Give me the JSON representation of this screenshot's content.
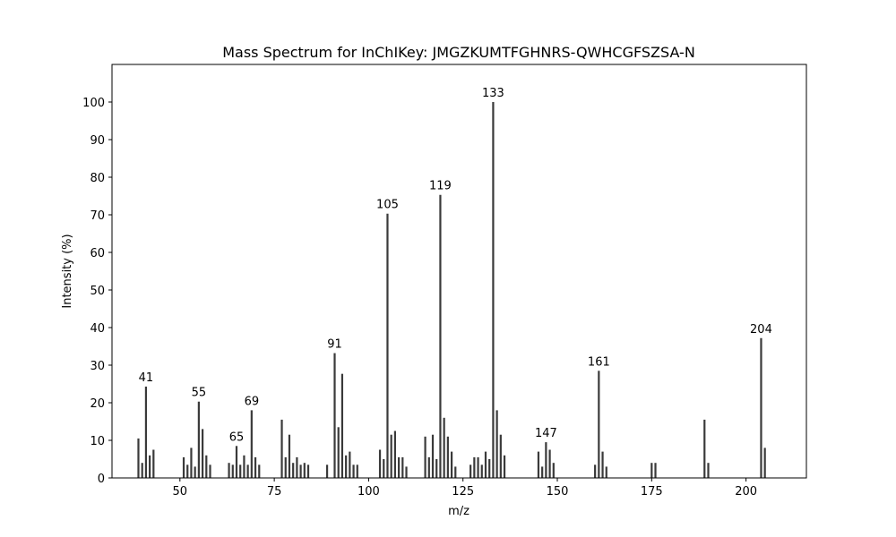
{
  "chart_data": {
    "type": "bar",
    "title": "Mass Spectrum for InChIKey: JMGZKUMTFGHNRS-QWHCGFSZSA-N",
    "xlabel": "m/z",
    "ylabel": "Intensity (%)",
    "xlim": [
      32,
      216
    ],
    "ylim": [
      0,
      110
    ],
    "xticks": [
      50,
      75,
      100,
      125,
      150,
      175,
      200
    ],
    "yticks": [
      0,
      10,
      20,
      30,
      40,
      50,
      60,
      70,
      80,
      90,
      100
    ],
    "grid": false,
    "bar_color": "#3a3a3a",
    "peaks": [
      {
        "mz": 39,
        "intensity": 10.5
      },
      {
        "mz": 40,
        "intensity": 4
      },
      {
        "mz": 41,
        "intensity": 24.3,
        "label": "41"
      },
      {
        "mz": 42,
        "intensity": 6
      },
      {
        "mz": 43,
        "intensity": 7.5
      },
      {
        "mz": 51,
        "intensity": 5.5
      },
      {
        "mz": 52,
        "intensity": 3.5
      },
      {
        "mz": 53,
        "intensity": 8
      },
      {
        "mz": 54,
        "intensity": 3
      },
      {
        "mz": 55,
        "intensity": 20.3,
        "label": "55"
      },
      {
        "mz": 56,
        "intensity": 13
      },
      {
        "mz": 57,
        "intensity": 6
      },
      {
        "mz": 58,
        "intensity": 3.5
      },
      {
        "mz": 63,
        "intensity": 4
      },
      {
        "mz": 64,
        "intensity": 3.5
      },
      {
        "mz": 65,
        "intensity": 8.5,
        "label": "65"
      },
      {
        "mz": 66,
        "intensity": 3.5
      },
      {
        "mz": 67,
        "intensity": 6
      },
      {
        "mz": 68,
        "intensity": 3.5
      },
      {
        "mz": 69,
        "intensity": 18,
        "label": "69"
      },
      {
        "mz": 70,
        "intensity": 5.5
      },
      {
        "mz": 71,
        "intensity": 3.5
      },
      {
        "mz": 77,
        "intensity": 15.5
      },
      {
        "mz": 78,
        "intensity": 5.5
      },
      {
        "mz": 79,
        "intensity": 11.5
      },
      {
        "mz": 80,
        "intensity": 4
      },
      {
        "mz": 81,
        "intensity": 5.5
      },
      {
        "mz": 82,
        "intensity": 3.5
      },
      {
        "mz": 83,
        "intensity": 4
      },
      {
        "mz": 84,
        "intensity": 3.5
      },
      {
        "mz": 89,
        "intensity": 3.5
      },
      {
        "mz": 91,
        "intensity": 33.2,
        "label": "91"
      },
      {
        "mz": 92,
        "intensity": 13.5
      },
      {
        "mz": 93,
        "intensity": 27.7
      },
      {
        "mz": 94,
        "intensity": 6
      },
      {
        "mz": 95,
        "intensity": 7
      },
      {
        "mz": 96,
        "intensity": 3.5
      },
      {
        "mz": 97,
        "intensity": 3.5
      },
      {
        "mz": 103,
        "intensity": 7.5
      },
      {
        "mz": 104,
        "intensity": 5
      },
      {
        "mz": 105,
        "intensity": 70.3,
        "label": "105"
      },
      {
        "mz": 106,
        "intensity": 11.5
      },
      {
        "mz": 107,
        "intensity": 12.5
      },
      {
        "mz": 108,
        "intensity": 5.5
      },
      {
        "mz": 109,
        "intensity": 5.5
      },
      {
        "mz": 110,
        "intensity": 3
      },
      {
        "mz": 115,
        "intensity": 11
      },
      {
        "mz": 116,
        "intensity": 5.5
      },
      {
        "mz": 117,
        "intensity": 11.5
      },
      {
        "mz": 118,
        "intensity": 5
      },
      {
        "mz": 119,
        "intensity": 75.3,
        "label": "119"
      },
      {
        "mz": 120,
        "intensity": 16
      },
      {
        "mz": 121,
        "intensity": 11
      },
      {
        "mz": 122,
        "intensity": 7
      },
      {
        "mz": 123,
        "intensity": 3
      },
      {
        "mz": 127,
        "intensity": 3.5
      },
      {
        "mz": 128,
        "intensity": 5.5
      },
      {
        "mz": 129,
        "intensity": 5.5
      },
      {
        "mz": 130,
        "intensity": 3.5
      },
      {
        "mz": 131,
        "intensity": 7
      },
      {
        "mz": 132,
        "intensity": 5
      },
      {
        "mz": 133,
        "intensity": 100,
        "label": "133"
      },
      {
        "mz": 134,
        "intensity": 18
      },
      {
        "mz": 135,
        "intensity": 11.5
      },
      {
        "mz": 136,
        "intensity": 6
      },
      {
        "mz": 145,
        "intensity": 7
      },
      {
        "mz": 146,
        "intensity": 3
      },
      {
        "mz": 147,
        "intensity": 9.5,
        "label": "147"
      },
      {
        "mz": 148,
        "intensity": 7.5
      },
      {
        "mz": 149,
        "intensity": 4
      },
      {
        "mz": 160,
        "intensity": 3.5
      },
      {
        "mz": 161,
        "intensity": 28.5,
        "label": "161"
      },
      {
        "mz": 162,
        "intensity": 7
      },
      {
        "mz": 163,
        "intensity": 3
      },
      {
        "mz": 175,
        "intensity": 4
      },
      {
        "mz": 176,
        "intensity": 4
      },
      {
        "mz": 189,
        "intensity": 15.5
      },
      {
        "mz": 190,
        "intensity": 4
      },
      {
        "mz": 204,
        "intensity": 37.2,
        "label": "204"
      },
      {
        "mz": 205,
        "intensity": 8
      }
    ]
  }
}
